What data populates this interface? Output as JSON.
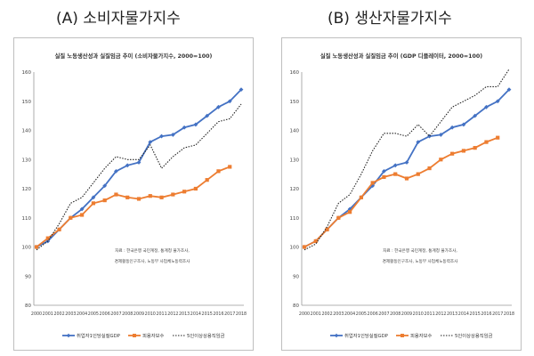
{
  "panels": [
    {
      "title": "(A) 소비자물가지수"
    },
    {
      "title": "(B) 생산자물가지수"
    }
  ],
  "chart_data": [
    {
      "type": "line",
      "title": "실질 노동생산성과 실질임금 추이 (소비자물가지수, 2000=100)",
      "xlabel": "",
      "ylabel": "",
      "x": [
        "2000",
        "2001",
        "2002",
        "2003",
        "2004",
        "2005",
        "2006",
        "2007",
        "2008",
        "2009",
        "2010",
        "2011",
        "2012",
        "2013",
        "2014",
        "2015",
        "2016",
        "2017",
        "2018"
      ],
      "ylim": [
        80,
        160
      ],
      "yticks": [
        80,
        90,
        100,
        110,
        120,
        130,
        140,
        150,
        160
      ],
      "grid": false,
      "legend": "bottom",
      "note": [
        "자료 : 한국은행 국민계정, 통계청 물가조사,",
        "경제활동인구조사, 노동부 사업체노동력조사"
      ],
      "series": [
        {
          "name": "취업자1인당실질GDP",
          "color": "#4472c4",
          "style": "solid",
          "marker": "diamond",
          "values": [
            100,
            102,
            106,
            110,
            113,
            117,
            121,
            126,
            128,
            129,
            136,
            138,
            138.5,
            141,
            142,
            145,
            148,
            150,
            154
          ]
        },
        {
          "name": "피용자보수",
          "color": "#ed7d31",
          "style": "solid",
          "marker": "square",
          "values": [
            100,
            103,
            106,
            110,
            111,
            115,
            116,
            118,
            117,
            116.5,
            117.5,
            117,
            118,
            119,
            120,
            123,
            126,
            127.5,
            null
          ]
        },
        {
          "name": "5인이상상용직임금",
          "color": "#222222",
          "style": "dotted",
          "marker": "none",
          "values": [
            99,
            102,
            108,
            115,
            117,
            122,
            127,
            131,
            130,
            130,
            135,
            127,
            131,
            134,
            135,
            139,
            143,
            144,
            149
          ]
        }
      ]
    },
    {
      "type": "line",
      "title": "실질 노동생산성과 실질임금 추이 (GDP 디플레이터, 2000=100)",
      "xlabel": "",
      "ylabel": "",
      "x": [
        "2000",
        "2001",
        "2002",
        "2003",
        "2004",
        "2005",
        "2006",
        "2007",
        "2008",
        "2009",
        "2010",
        "2011",
        "2012",
        "2013",
        "2014",
        "2015",
        "2016",
        "2017",
        "2018"
      ],
      "ylim": [
        80,
        160
      ],
      "yticks": [
        80,
        90,
        100,
        110,
        120,
        130,
        140,
        150,
        160
      ],
      "grid": false,
      "legend": "bottom",
      "note": [
        "자료 : 한국은행 국민계정, 통계청 물가조사,",
        "경제활동인구조사, 노동부 사업체노동력조사"
      ],
      "series": [
        {
          "name": "취업자1인당실질GDP",
          "color": "#4472c4",
          "style": "solid",
          "marker": "diamond",
          "values": [
            100,
            102,
            106,
            110,
            113,
            117,
            121,
            126,
            128,
            129,
            136,
            138,
            138.5,
            141,
            142,
            145,
            148,
            150,
            154
          ]
        },
        {
          "name": "피용자보수",
          "color": "#ed7d31",
          "style": "solid",
          "marker": "square",
          "values": [
            100,
            102,
            106,
            110,
            112,
            117,
            122,
            124,
            125,
            123.5,
            125,
            127,
            130,
            132,
            133,
            134,
            136,
            137.5,
            null
          ]
        },
        {
          "name": "5인이상상용직임금",
          "color": "#222222",
          "style": "dotted",
          "marker": "none",
          "values": [
            99,
            101,
            107,
            115,
            118,
            125,
            133,
            139,
            139,
            138,
            142,
            138,
            143,
            148,
            150,
            152,
            155,
            155,
            161
          ]
        }
      ]
    }
  ]
}
